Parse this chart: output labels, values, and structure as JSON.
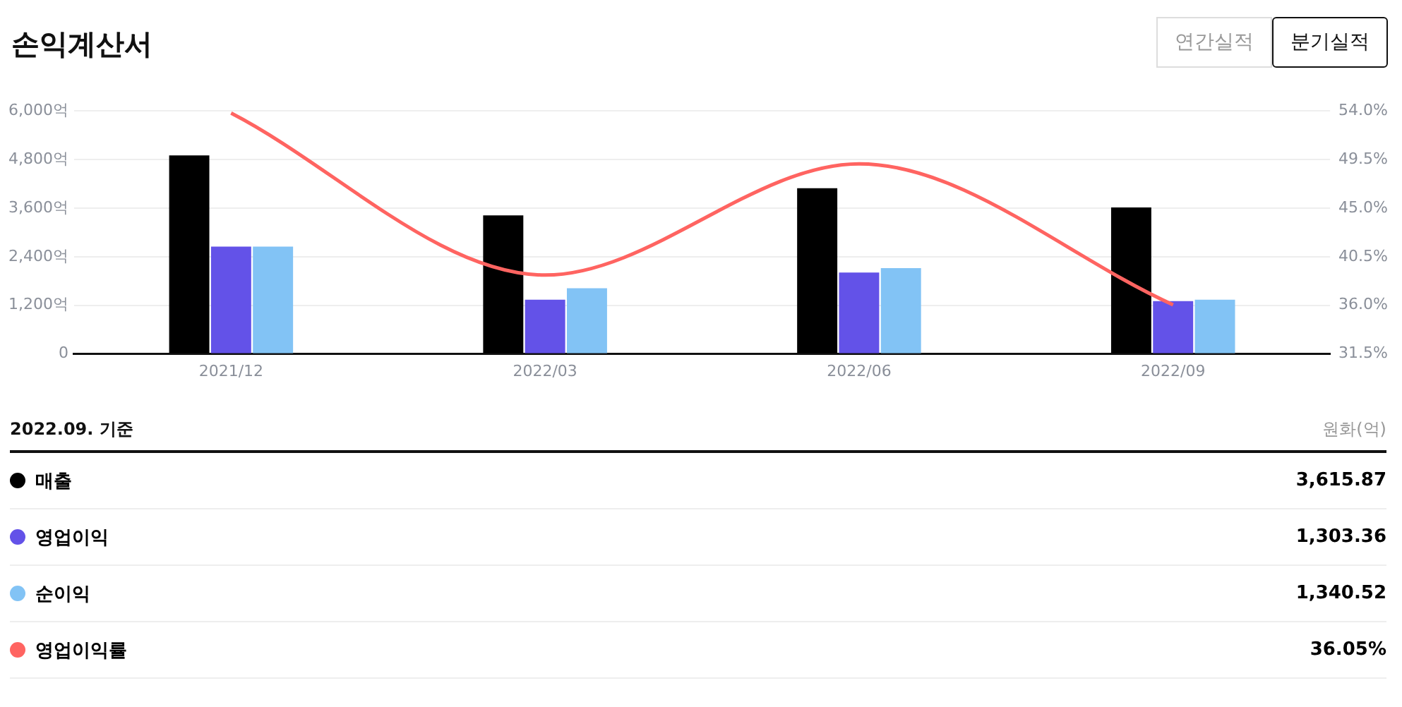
{
  "chart_data": {
    "type": "bar",
    "title": "손익계산서",
    "categories": [
      "2021/12",
      "2022/03",
      "2022/06",
      "2022/09"
    ],
    "series": [
      {
        "name": "매출",
        "color": "#000000",
        "values": [
          4900,
          3420,
          4090,
          3616
        ]
      },
      {
        "name": "영업이익",
        "color": "#6352e8",
        "values": [
          2650,
          1340,
          2010,
          1303
        ]
      },
      {
        "name": "순이익",
        "color": "#82c3f5",
        "values": [
          2650,
          1620,
          2120,
          1341
        ]
      },
      {
        "name": "영업이익률",
        "type": "line",
        "axis": "y2",
        "color": "#ff6461",
        "values": [
          53.8,
          38.8,
          49.1,
          36.05
        ]
      }
    ],
    "ylim": [
      0,
      6000
    ],
    "yticks": [
      0,
      {
        "value": 1200,
        "label": "1,200억"
      },
      {
        "value": 2400,
        "label": "2,400억"
      },
      {
        "value": 3600,
        "label": "3,600억"
      },
      {
        "value": 4800,
        "label": "4,800억"
      },
      {
        "value": 6000,
        "label": "6,000억"
      }
    ],
    "y2lim": [
      31.5,
      54
    ],
    "y2ticks": [
      {
        "value": 31.5,
        "label": "31.5%"
      },
      {
        "value": 36,
        "label": "36.0%"
      },
      {
        "value": 40.5,
        "label": "40.5%"
      },
      {
        "value": 45,
        "label": "45.0%"
      },
      {
        "value": 49.5,
        "label": "49.5%"
      },
      {
        "value": 54,
        "label": "54.0%"
      }
    ],
    "grid": "y",
    "legend": "bottom",
    "marker": "none",
    "annotations": [
      "2022.09. 기준",
      "원화(억)",
      "연간실적",
      "분기실적",
      "3,615.87",
      "1,303.36",
      "1,340.52",
      "36.05%"
    ]
  }
}
